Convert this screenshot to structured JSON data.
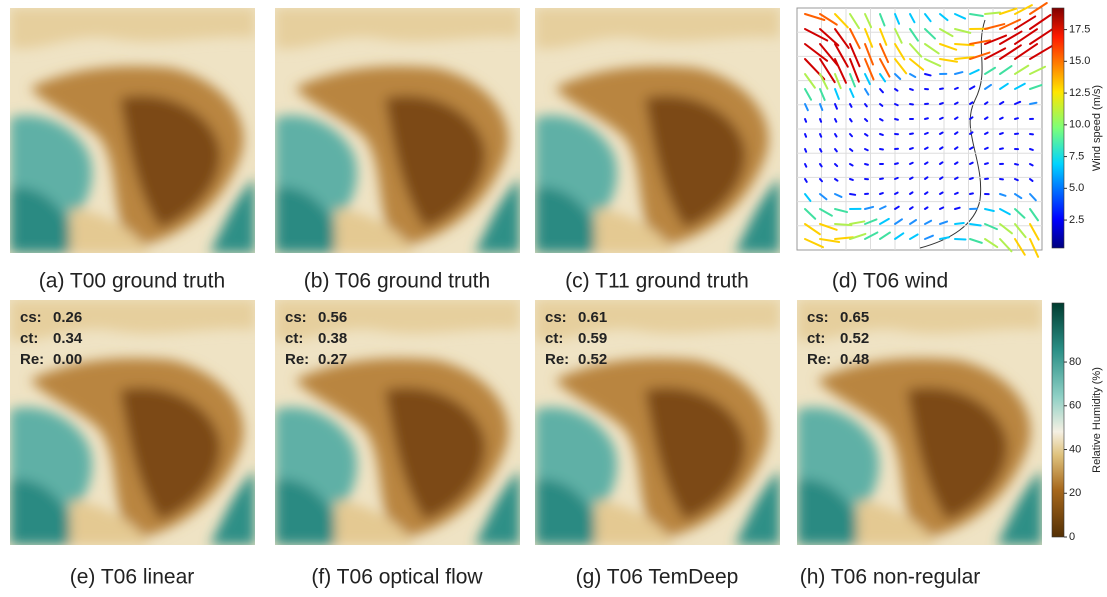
{
  "panels": [
    {
      "caption": "(a) T00 ground truth"
    },
    {
      "caption": "(b) T06 ground truth"
    },
    {
      "caption": "(c) T11 ground truth"
    },
    {
      "caption": "(d) T06 wind"
    },
    {
      "caption": "(e) T06 linear",
      "metrics": [
        {
          "label": "cs:",
          "value": "0.26"
        },
        {
          "label": "ct:",
          "value": "0.34"
        },
        {
          "label": "Re:",
          "value": "0.00"
        }
      ]
    },
    {
      "caption": "(f) T06 optical flow",
      "metrics": [
        {
          "label": "cs:",
          "value": "0.56"
        },
        {
          "label": "ct:",
          "value": "0.38"
        },
        {
          "label": "Re:",
          "value": "0.27"
        }
      ]
    },
    {
      "caption": "(g) T06 TemDeep",
      "metrics": [
        {
          "label": "cs:",
          "value": "0.61"
        },
        {
          "label": "ct:",
          "value": "0.59"
        },
        {
          "label": "Re:",
          "value": "0.52"
        }
      ]
    },
    {
      "caption": "(h) T06 non-regular",
      "metrics": [
        {
          "label": "cs:",
          "value": "0.65"
        },
        {
          "label": "ct:",
          "value": "0.52"
        },
        {
          "label": "Re:",
          "value": "0.48"
        }
      ]
    }
  ],
  "colorbars": [
    {
      "label": "Wind speed (m/s)",
      "lim": [
        0.3,
        19.2
      ],
      "ticks": [
        {
          "value": 2.5,
          "label": "2.5"
        },
        {
          "value": 5,
          "label": "5.0"
        },
        {
          "value": 7.5,
          "label": "7.5"
        },
        {
          "value": 10,
          "label": "10.0"
        },
        {
          "value": 12.5,
          "label": "12.5"
        },
        {
          "value": 15,
          "label": "15.0"
        },
        {
          "value": 17.5,
          "label": "17.5"
        }
      ]
    },
    {
      "label": "Relative Humidity (%)",
      "lim": [
        0,
        107
      ],
      "ticks": [
        0,
        20,
        40,
        60,
        80
      ]
    }
  ]
}
